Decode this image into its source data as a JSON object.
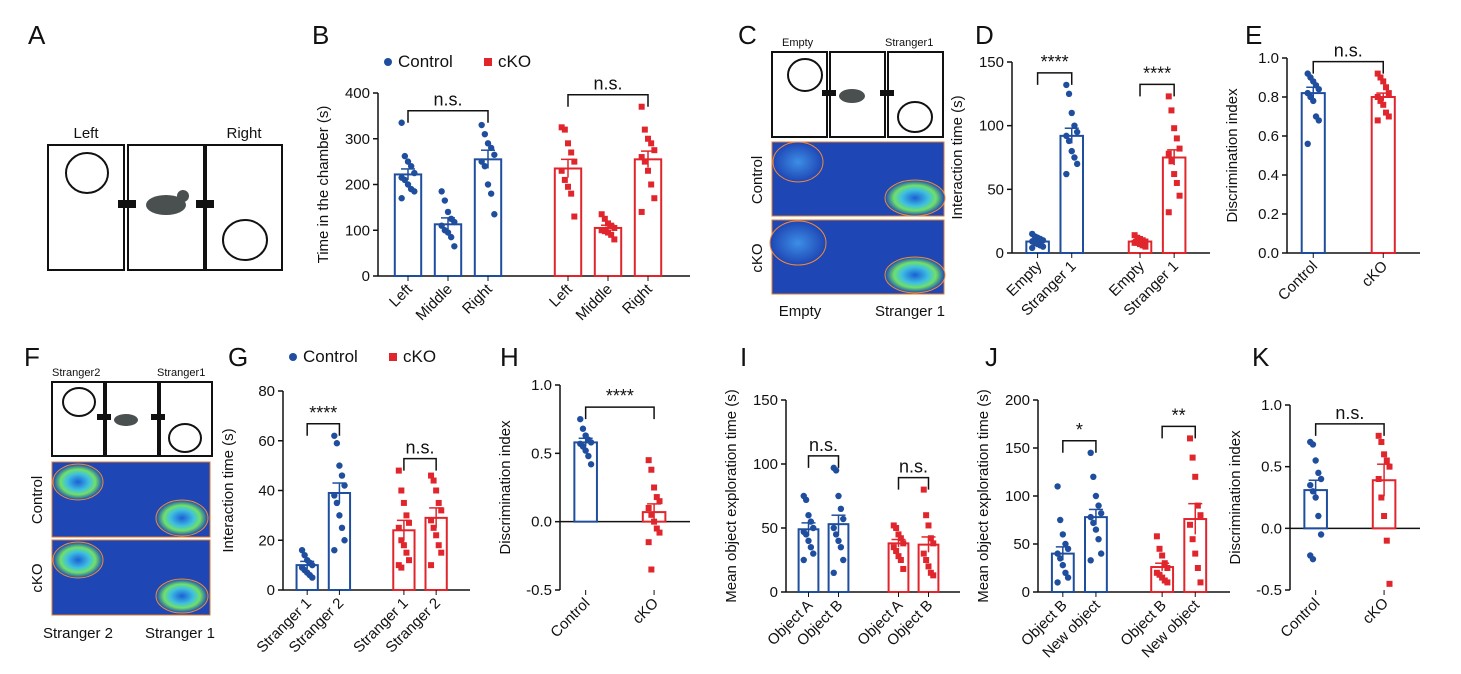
{
  "chart_data": [
    {
      "type": "bar",
      "panel": "B",
      "ylabel": "Time in the chamber (s)",
      "ylim": [
        0,
        400
      ],
      "yticks": [
        0,
        100,
        200,
        300,
        400
      ],
      "legend": [
        {
          "name": "Control",
          "color": "#1f4e9e"
        },
        {
          "name": "cKO",
          "color": "#e0262c"
        }
      ],
      "categories": [
        "Left",
        "Middle",
        "Right",
        "Left",
        "Middle",
        "Right"
      ],
      "colors": [
        "#1f4e9e",
        "#1f4e9e",
        "#1f4e9e",
        "#e0262c",
        "#e0262c",
        "#e0262c"
      ],
      "values": [
        222,
        113,
        255,
        235,
        105,
        255
      ],
      "errors": [
        12,
        14,
        20,
        20,
        6,
        18
      ],
      "points": [
        [
          335,
          262,
          250,
          240,
          225,
          215,
          210,
          200,
          190,
          185,
          170
        ],
        [
          185,
          165,
          140,
          125,
          118,
          110,
          100,
          95,
          85,
          65
        ],
        [
          330,
          310,
          290,
          280,
          265,
          250,
          240,
          200,
          180,
          135
        ],
        [
          325,
          320,
          290,
          270,
          250,
          230,
          210,
          195,
          180,
          130
        ],
        [
          135,
          125,
          115,
          110,
          105,
          100,
          98,
          95,
          90,
          80
        ],
        [
          370,
          320,
          300,
          290,
          275,
          260,
          250,
          230,
          200,
          170,
          140
        ]
      ],
      "annotations": [
        "n.s.",
        "n.s."
      ]
    },
    {
      "type": "bar",
      "panel": "D",
      "ylabel": "Interaction time (s)",
      "ylim": [
        0,
        150
      ],
      "yticks": [
        0,
        50,
        100,
        150
      ],
      "categories": [
        "Empty",
        "Stranger 1",
        "Empty",
        "Stranger 1"
      ],
      "colors": [
        "#1f4e9e",
        "#1f4e9e",
        "#e0262c",
        "#e0262c"
      ],
      "values": [
        9,
        92,
        9,
        75
      ],
      "errors": [
        2,
        6,
        1.5,
        6
      ],
      "points": [
        [
          15,
          13,
          12,
          11,
          10,
          9,
          8,
          7,
          6,
          5,
          4
        ],
        [
          132,
          125,
          110,
          100,
          95,
          92,
          88,
          80,
          75,
          70,
          62
        ],
        [
          14,
          12,
          11,
          10,
          9,
          8,
          8,
          7,
          6,
          5
        ],
        [
          123,
          112,
          98,
          90,
          82,
          78,
          72,
          62,
          55,
          45,
          32
        ]
      ],
      "annotations": [
        "****",
        "****"
      ]
    },
    {
      "type": "bar",
      "panel": "E",
      "ylabel": "Discrimination index",
      "ylim": [
        0,
        1
      ],
      "yticks": [
        {
          "value": 0,
          "label": "0.0"
        },
        0.2,
        0.4,
        0.6,
        0.8,
        {
          "value": 1,
          "label": "1.0"
        }
      ],
      "categories": [
        "Control",
        "cKO"
      ],
      "colors": [
        "#1f4e9e",
        "#e0262c"
      ],
      "values": [
        0.82,
        0.8
      ],
      "errors": [
        0.03,
        0.02
      ],
      "points": [
        [
          0.92,
          0.9,
          0.88,
          0.86,
          0.84,
          0.82,
          0.8,
          0.78,
          0.7,
          0.68,
          0.56
        ],
        [
          0.92,
          0.9,
          0.88,
          0.85,
          0.82,
          0.8,
          0.78,
          0.76,
          0.72,
          0.7,
          0.68
        ]
      ],
      "annotations": [
        "n.s."
      ]
    },
    {
      "type": "bar",
      "panel": "G",
      "ylabel": "Interaction time (s)",
      "ylim": [
        0,
        80
      ],
      "yticks": [
        0,
        20,
        40,
        60,
        80
      ],
      "legend": [
        {
          "name": "Control",
          "color": "#1f4e9e"
        },
        {
          "name": "cKO",
          "color": "#e0262c"
        }
      ],
      "categories": [
        "Stranger 1",
        "Stranger 2",
        "Stranger 1",
        "Stranger 2"
      ],
      "colors": [
        "#1f4e9e",
        "#1f4e9e",
        "#e0262c",
        "#e0262c"
      ],
      "values": [
        10,
        39,
        24,
        29
      ],
      "errors": [
        1.5,
        4,
        4,
        4
      ],
      "points": [
        [
          16,
          14,
          12,
          11,
          10,
          9,
          8,
          7,
          6,
          5
        ],
        [
          62,
          59,
          50,
          46,
          42,
          38,
          35,
          30,
          25,
          20,
          16
        ],
        [
          48,
          40,
          35,
          30,
          27,
          25,
          20,
          18,
          15,
          12,
          10,
          9
        ],
        [
          46,
          44,
          40,
          35,
          32,
          28,
          25,
          22,
          18,
          15,
          10
        ]
      ],
      "annotations": [
        "****",
        "n.s."
      ]
    },
    {
      "type": "bar",
      "panel": "H",
      "ylabel": "Discrimination index",
      "ylim": [
        -0.5,
        1
      ],
      "yticks": [
        -0.5,
        {
          "value": 0,
          "label": "0.0"
        },
        0.5,
        {
          "value": 1,
          "label": "1.0"
        }
      ],
      "categories": [
        "Control",
        "cKO"
      ],
      "colors": [
        "#1f4e9e",
        "#e0262c"
      ],
      "values": [
        0.58,
        0.07
      ],
      "errors": [
        0.03,
        0.06
      ],
      "points": [
        [
          0.75,
          0.68,
          0.63,
          0.6,
          0.58,
          0.57,
          0.55,
          0.52,
          0.48,
          0.42
        ],
        [
          0.45,
          0.38,
          0.25,
          0.18,
          0.15,
          0.1,
          0.05,
          0,
          -0.05,
          -0.08,
          -0.15,
          -0.35
        ]
      ],
      "annotations": [
        "****"
      ]
    },
    {
      "type": "bar",
      "panel": "I",
      "ylabel": "Mean object exploration time (s)",
      "ylim": [
        0,
        150
      ],
      "yticks": [
        0,
        50,
        100,
        150
      ],
      "categories": [
        "Object A",
        "Object B",
        "Object A",
        "Object B"
      ],
      "colors": [
        "#1f4e9e",
        "#1f4e9e",
        "#e0262c",
        "#e0262c"
      ],
      "values": [
        49,
        53,
        38,
        37
      ],
      "errors": [
        5,
        7,
        3,
        6
      ],
      "points": [
        [
          75,
          72,
          60,
          55,
          50,
          47,
          45,
          40,
          35,
          30,
          25
        ],
        [
          97,
          95,
          75,
          65,
          57,
          50,
          45,
          40,
          35,
          25,
          15
        ],
        [
          52,
          50,
          45,
          42,
          38,
          35,
          32,
          28,
          25,
          18
        ],
        [
          80,
          60,
          52,
          42,
          38,
          30,
          25,
          20,
          15,
          13
        ]
      ],
      "annotations": [
        "n.s.",
        "n.s."
      ]
    },
    {
      "type": "bar",
      "panel": "J",
      "ylabel": "Mean object exploration time (s)",
      "ylim": [
        0,
        200
      ],
      "yticks": [
        0,
        50,
        100,
        150,
        200
      ],
      "categories": [
        "Object B",
        "New object",
        "Object B",
        "New object"
      ],
      "colors": [
        "#1f4e9e",
        "#1f4e9e",
        "#e0262c",
        "#e0262c"
      ],
      "values": [
        40,
        78,
        26,
        76
      ],
      "errors": [
        7,
        8,
        4,
        16
      ],
      "points": [
        [
          110,
          75,
          60,
          50,
          45,
          40,
          35,
          28,
          20,
          15,
          10
        ],
        [
          145,
          120,
          100,
          90,
          82,
          78,
          72,
          65,
          55,
          40,
          33
        ],
        [
          58,
          45,
          38,
          30,
          25,
          20,
          18,
          15,
          12,
          10
        ],
        [
          160,
          140,
          120,
          90,
          80,
          70,
          55,
          40,
          25,
          10
        ]
      ],
      "annotations": [
        "*",
        "**"
      ]
    },
    {
      "type": "bar",
      "panel": "K",
      "ylabel": "Discrimination index",
      "ylim": [
        -0.5,
        1
      ],
      "yticks": [
        -0.5,
        {
          "value": 0,
          "label": "0.0"
        },
        0.5,
        {
          "value": 1,
          "label": "1.0"
        }
      ],
      "categories": [
        "Control",
        "cKO"
      ],
      "colors": [
        "#1f4e9e",
        "#e0262c"
      ],
      "values": [
        0.31,
        0.39
      ],
      "errors": [
        0.08,
        0.13
      ],
      "points": [
        [
          0.7,
          0.68,
          0.55,
          0.45,
          0.4,
          0.35,
          0.3,
          0.25,
          0.1,
          -0.05,
          -0.22,
          -0.25
        ],
        [
          0.75,
          0.7,
          0.6,
          0.55,
          0.5,
          0.4,
          0.25,
          0.1,
          -0.1,
          -0.45
        ]
      ],
      "annotations": [
        "n.s."
      ]
    }
  ],
  "diagrams": {
    "A": {
      "panel": "A",
      "left": "Left",
      "right": "Right"
    },
    "C": {
      "panel": "C",
      "top_left": "Empty",
      "top_right": "Stranger1",
      "row1": "Control",
      "row2": "cKO",
      "bottom_left": "Empty",
      "bottom_right": "Stranger 1"
    },
    "F": {
      "panel": "F",
      "top_left": "Stranger2",
      "top_right": "Stranger1",
      "row1": "Control",
      "row2": "cKO",
      "bottom_left": "Stranger 2",
      "bottom_right": "Stranger 1"
    }
  }
}
